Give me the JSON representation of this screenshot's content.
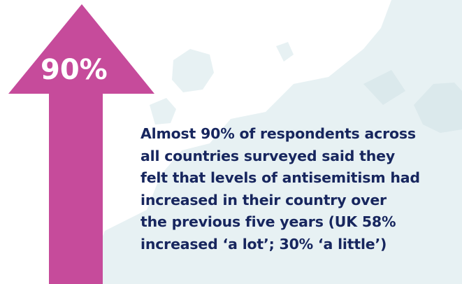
{
  "infographic": {
    "percent_label": "90%",
    "statement_lines": [
      "Almost 90% of respondents across",
      "all countries surveyed said they",
      "felt that levels of antisemitism had",
      "increased in their country over",
      "the previous five years (UK 58%",
      "increased ‘a lot’; 30% ‘a little’)"
    ]
  },
  "colors": {
    "arrow": "#c64b9b",
    "text": "#17265e",
    "map_fill": "#e7f1f3",
    "background": "#ffffff"
  },
  "icons": {
    "arrow": "up-arrow-icon",
    "background": "europe-map-silhouette"
  }
}
